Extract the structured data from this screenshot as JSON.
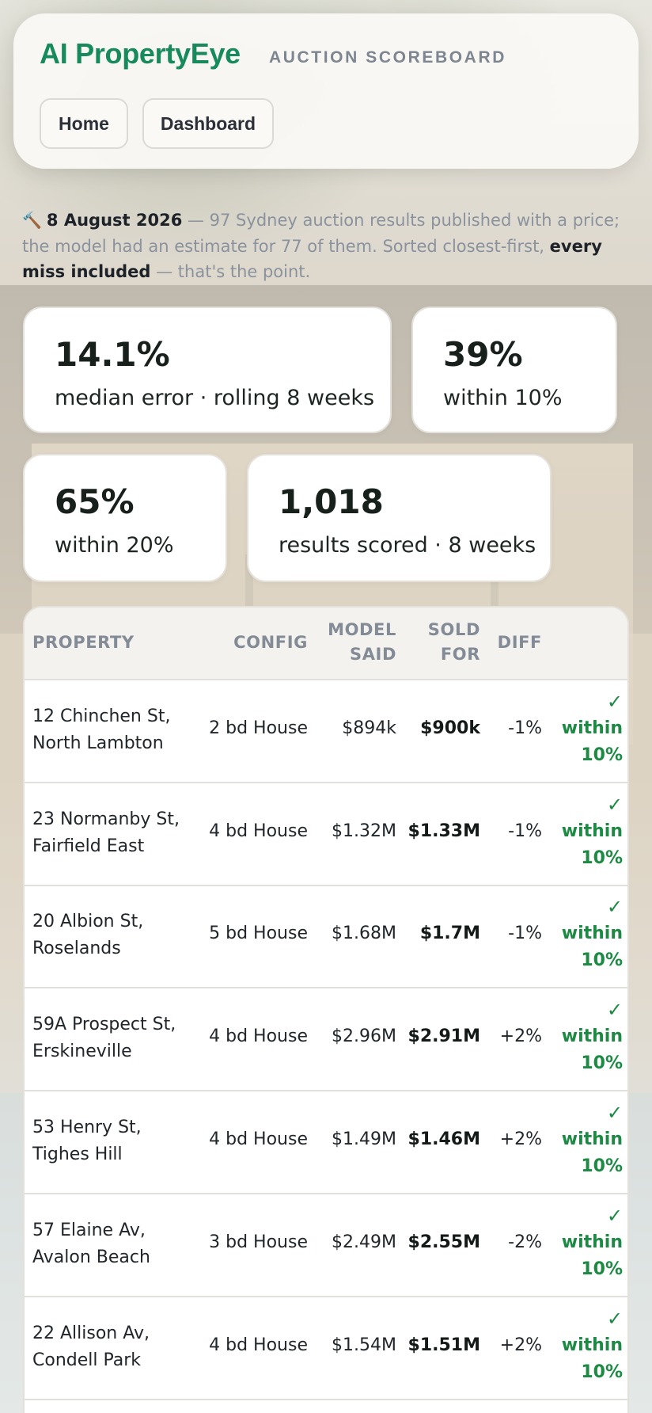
{
  "header": {
    "brand": "AI PropertyEye",
    "subtitle": "AUCTION SCOREBOARD",
    "nav": [
      {
        "label": "Home"
      },
      {
        "label": "Dashboard"
      }
    ]
  },
  "intro": {
    "icon": "hammer-icon",
    "date": "8 August 2026",
    "text_1": " — 97 Sydney auction results published with a price; the model had an estimate for 77 of them. Sorted closest-first, ",
    "emphasis": "every miss included",
    "text_2": " — that's the point."
  },
  "stats": [
    {
      "value": "14.1%",
      "label": "median error · rolling 8 weeks"
    },
    {
      "value": "39%",
      "label": "within 10%"
    },
    {
      "value": "65%",
      "label": "within 20%"
    },
    {
      "value": "1,018",
      "label": "results scored · 8 weeks"
    }
  ],
  "table": {
    "columns": {
      "property": "PROPERTY",
      "config": "CONFIG",
      "model_1": "MODEL",
      "model_2": "SAID",
      "sold_1": "SOLD",
      "sold_2": "FOR",
      "diff": "DIFF"
    },
    "rows": [
      {
        "address_1": "12 Chinchen St,",
        "address_2": "North Lambton",
        "config": "2 bd House",
        "model": "$894k",
        "sold": "$900k",
        "diff": "-1%",
        "check": "✓",
        "verdict_1": "within",
        "verdict_2": "10%"
      },
      {
        "address_1": "23 Normanby St,",
        "address_2": "Fairfield East",
        "config": "4 bd House",
        "model": "$1.32M",
        "sold": "$1.33M",
        "diff": "-1%",
        "check": "✓",
        "verdict_1": "within",
        "verdict_2": "10%"
      },
      {
        "address_1": "20 Albion St,",
        "address_2": "Roselands",
        "config": "5 bd House",
        "model": "$1.68M",
        "sold": "$1.7M",
        "diff": "-1%",
        "check": "✓",
        "verdict_1": "within",
        "verdict_2": "10%"
      },
      {
        "address_1": "59A Prospect St,",
        "address_2": "Erskineville",
        "config": "4 bd House",
        "model": "$2.96M",
        "sold": "$2.91M",
        "diff": "+2%",
        "check": "✓",
        "verdict_1": "within",
        "verdict_2": "10%"
      },
      {
        "address_1": "53 Henry St,",
        "address_2": "Tighes Hill",
        "config": "4 bd House",
        "model": "$1.49M",
        "sold": "$1.46M",
        "diff": "+2%",
        "check": "✓",
        "verdict_1": "within",
        "verdict_2": "10%"
      },
      {
        "address_1": "57 Elaine Av,",
        "address_2": "Avalon Beach",
        "config": "3 bd House",
        "model": "$2.49M",
        "sold": "$2.55M",
        "diff": "-2%",
        "check": "✓",
        "verdict_1": "within",
        "verdict_2": "10%"
      },
      {
        "address_1": "22 Allison Av,",
        "address_2": "Condell Park",
        "config": "4 bd House",
        "model": "$1.54M",
        "sold": "$1.51M",
        "diff": "+2%",
        "check": "✓",
        "verdict_1": "within",
        "verdict_2": "10%"
      }
    ]
  },
  "colors": {
    "brand": "#178a5b",
    "accent_ok": "#1d8a44",
    "muted": "#8a929d"
  }
}
